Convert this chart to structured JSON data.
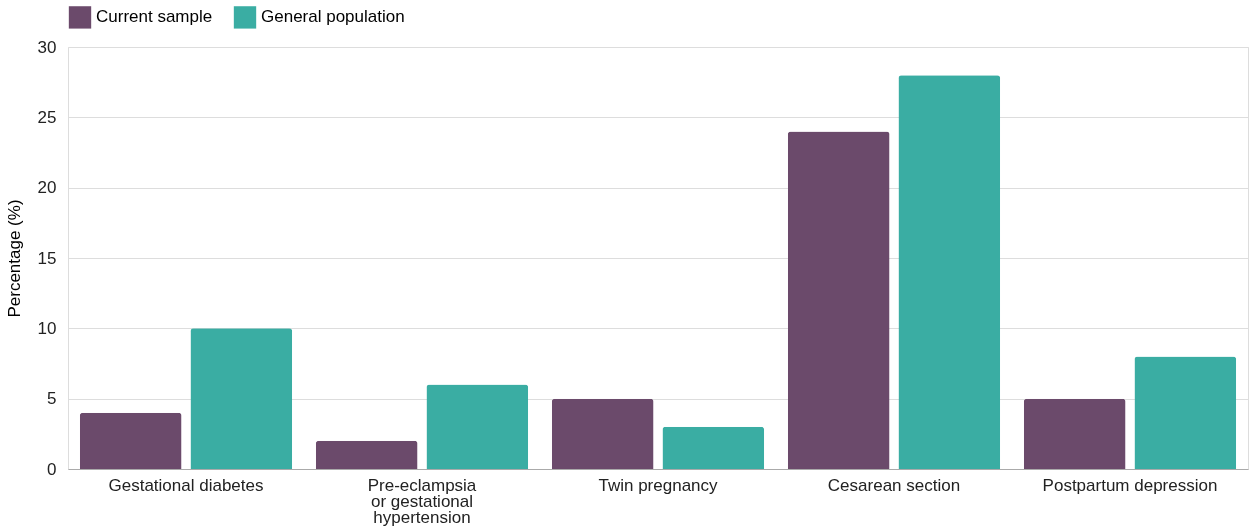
{
  "chart_data": {
    "type": "bar",
    "ylabel": "Percentage (%)",
    "categories": [
      "Gestational diabetes",
      "Pre-eclampsia\nor gestational\nhypertension",
      "Twin pregnancy",
      "Cesarean section",
      "Postpartum depression"
    ],
    "series": [
      {
        "name": "Current sample",
        "color": "#6b4a6b",
        "values": [
          4,
          2,
          5,
          24,
          5
        ]
      },
      {
        "name": "General population",
        "color": "#3aada3",
        "values": [
          10,
          6,
          3,
          28,
          8
        ]
      }
    ],
    "ylim": [
      0,
      30
    ],
    "yticks": [
      0,
      5,
      10,
      15,
      20,
      25,
      30
    ],
    "grid": "y",
    "legend": "top"
  }
}
